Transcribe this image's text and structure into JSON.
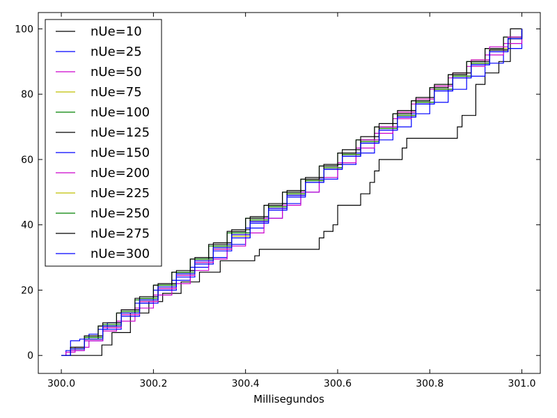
{
  "chart_data": {
    "type": "line",
    "title": "",
    "xlabel": "Millisegundos",
    "ylabel": "",
    "xlim": [
      299.95,
      301.04
    ],
    "ylim": [
      -5.5,
      105
    ],
    "x_ticks": [
      300.0,
      300.2,
      300.4,
      300.6,
      300.8,
      301.0
    ],
    "x_tick_labels": [
      "300.0",
      "300.2",
      "300.4",
      "300.6",
      "300.8",
      "301.0"
    ],
    "y_ticks": [
      0,
      20,
      40,
      60,
      80,
      100
    ],
    "y_tick_labels": [
      "0",
      "20",
      "40",
      "60",
      "80",
      "100"
    ],
    "grid": false,
    "legend_position": "top-left",
    "step": true,
    "series": [
      {
        "name": "nUe=10",
        "color": "#000000",
        "x": [
          300.0,
          300.085,
          300.088,
          300.11,
          300.15,
          300.19,
          300.22,
          300.26,
          300.3,
          300.345,
          300.42,
          300.43,
          300.56,
          300.57,
          300.59,
          300.6,
          300.62,
          300.65,
          300.67,
          300.68,
          300.69,
          300.71,
          300.74,
          300.75,
          300.83,
          300.86,
          300.87,
          300.9,
          300.92,
          300.95,
          300.975,
          301.0
        ],
        "y": [
          0.0,
          0.0,
          3.2,
          7.0,
          13.0,
          16.5,
          19.0,
          22.5,
          25.5,
          29.0,
          30.5,
          32.5,
          36.0,
          38.0,
          40.0,
          46.0,
          46.0,
          49.5,
          53.0,
          56.5,
          60.0,
          60.0,
          63.5,
          66.5,
          66.5,
          70.0,
          73.5,
          83.0,
          86.5,
          90.0,
          100.0,
          100.0
        ]
      },
      {
        "name": "nUe=25",
        "color": "#0000ff",
        "x": [
          300.0,
          300.01,
          300.02,
          300.04,
          300.06,
          300.08,
          300.1,
          300.13,
          300.16,
          300.2,
          300.24,
          300.28,
          300.32,
          300.36,
          300.4,
          300.44,
          300.48,
          300.52,
          300.56,
          300.6,
          300.64,
          300.68,
          300.72,
          300.76,
          300.8,
          300.84,
          300.88,
          300.92,
          300.96,
          301.0
        ],
        "y": [
          0.0,
          1.5,
          4.5,
          5.0,
          6.5,
          8.0,
          10.0,
          13.0,
          16.0,
          20.0,
          23.0,
          27.0,
          30.0,
          34.0,
          39.0,
          42.0,
          46.5,
          50.0,
          54.0,
          58.5,
          62.0,
          66.0,
          70.0,
          74.0,
          77.5,
          81.5,
          85.5,
          89.5,
          94.0,
          100.0
        ]
      },
      {
        "name": "nUe=50",
        "color": "#cc00cc",
        "x": [
          300.0,
          300.01,
          300.03,
          300.06,
          300.09,
          300.12,
          300.16,
          300.2,
          300.24,
          300.28,
          300.32,
          300.36,
          300.4,
          300.44,
          300.48,
          300.52,
          300.56,
          300.6,
          300.64,
          300.68,
          300.72,
          300.76,
          300.8,
          300.84,
          300.88,
          300.92,
          300.96,
          301.0
        ],
        "y": [
          0.0,
          1.0,
          2.5,
          4.5,
          7.5,
          10.5,
          14.5,
          18.5,
          22.0,
          26.0,
          29.5,
          33.5,
          37.5,
          42.0,
          46.0,
          50.0,
          54.5,
          59.0,
          63.5,
          68.0,
          72.5,
          77.0,
          81.5,
          85.0,
          88.5,
          92.0,
          95.5,
          100.0
        ]
      },
      {
        "name": "nUe=75",
        "color": "#bfbf00",
        "x": [
          300.0,
          300.02,
          300.05,
          300.09,
          300.13,
          300.17,
          300.21,
          300.25,
          300.29,
          300.33,
          300.37,
          300.41,
          300.45,
          300.49,
          300.53,
          300.57,
          300.61,
          300.65,
          300.69,
          300.73,
          300.77,
          300.81,
          300.85,
          300.89,
          300.93,
          300.97,
          301.0
        ],
        "y": [
          0.0,
          2.0,
          5.0,
          8.5,
          12.5,
          16.5,
          20.5,
          24.5,
          28.5,
          32.5,
          36.5,
          41.0,
          45.0,
          49.5,
          53.5,
          57.5,
          61.5,
          66.0,
          70.0,
          74.5,
          78.5,
          82.5,
          86.5,
          90.5,
          94.0,
          97.5,
          100.0
        ]
      },
      {
        "name": "nUe=100",
        "color": "#008000",
        "x": [
          300.0,
          300.02,
          300.05,
          300.08,
          300.12,
          300.16,
          300.2,
          300.24,
          300.28,
          300.32,
          300.36,
          300.4,
          300.44,
          300.48,
          300.52,
          300.56,
          300.6,
          300.64,
          300.68,
          300.72,
          300.76,
          300.8,
          300.84,
          300.88,
          300.92,
          300.96,
          301.0
        ],
        "y": [
          0.0,
          2.5,
          5.5,
          9.0,
          13.0,
          17.0,
          21.5,
          25.5,
          29.5,
          33.5,
          37.5,
          42.0,
          46.0,
          50.0,
          54.0,
          58.0,
          62.0,
          66.0,
          70.0,
          74.0,
          78.0,
          82.0,
          86.0,
          90.0,
          94.0,
          97.5,
          100.0
        ]
      },
      {
        "name": "nUe=125",
        "color": "#000000",
        "x": [
          300.0,
          300.02,
          300.05,
          300.08,
          300.12,
          300.16,
          300.2,
          300.24,
          300.28,
          300.32,
          300.36,
          300.4,
          300.44,
          300.48,
          300.52,
          300.56,
          300.6,
          300.64,
          300.68,
          300.72,
          300.76,
          300.8,
          300.84,
          300.88,
          300.92,
          300.96,
          301.0
        ],
        "y": [
          0.0,
          2.0,
          5.0,
          9.0,
          13.0,
          17.5,
          21.5,
          25.5,
          29.5,
          34.0,
          38.0,
          42.0,
          46.0,
          50.0,
          54.0,
          58.0,
          62.0,
          66.0,
          70.0,
          74.0,
          78.0,
          82.0,
          86.0,
          90.0,
          94.0,
          97.5,
          100.0
        ]
      },
      {
        "name": "nUe=150",
        "color": "#0000ff",
        "x": [
          300.0,
          300.02,
          300.05,
          300.09,
          300.13,
          300.17,
          300.21,
          300.25,
          300.29,
          300.33,
          300.37,
          300.41,
          300.45,
          300.49,
          300.53,
          300.57,
          300.61,
          300.65,
          300.69,
          300.73,
          300.77,
          300.81,
          300.85,
          300.89,
          300.93,
          300.97,
          301.0
        ],
        "y": [
          0.0,
          1.5,
          4.5,
          8.0,
          12.0,
          16.0,
          20.0,
          24.0,
          28.0,
          32.0,
          36.0,
          40.5,
          44.5,
          48.5,
          53.0,
          57.0,
          61.0,
          65.0,
          69.0,
          73.0,
          77.0,
          81.0,
          85.0,
          89.0,
          93.0,
          97.0,
          100.0
        ]
      },
      {
        "name": "nUe=200",
        "color": "#cc00cc",
        "x": [
          300.0,
          300.02,
          300.05,
          300.09,
          300.13,
          300.17,
          300.21,
          300.25,
          300.29,
          300.33,
          300.37,
          300.41,
          300.45,
          300.49,
          300.53,
          300.57,
          300.61,
          300.65,
          300.69,
          300.73,
          300.77,
          300.81,
          300.85,
          300.89,
          300.93,
          300.97,
          301.0
        ],
        "y": [
          0.0,
          1.5,
          4.5,
          8.5,
          12.5,
          16.5,
          20.5,
          24.5,
          28.5,
          32.5,
          37.0,
          41.0,
          45.0,
          49.0,
          53.5,
          57.5,
          61.5,
          66.0,
          70.0,
          74.5,
          78.5,
          82.5,
          86.5,
          90.5,
          94.5,
          97.5,
          100.0
        ]
      },
      {
        "name": "nUe=225",
        "color": "#bfbf00",
        "x": [
          300.0,
          300.02,
          300.05,
          300.09,
          300.13,
          300.17,
          300.21,
          300.25,
          300.29,
          300.33,
          300.37,
          300.41,
          300.45,
          300.49,
          300.53,
          300.57,
          300.61,
          300.65,
          300.69,
          300.73,
          300.77,
          300.81,
          300.85,
          300.89,
          300.93,
          300.97,
          301.0
        ],
        "y": [
          0.0,
          2.0,
          5.0,
          9.0,
          13.0,
          17.0,
          21.0,
          25.0,
          29.0,
          33.0,
          37.0,
          41.5,
          45.5,
          49.5,
          53.5,
          57.5,
          61.5,
          65.5,
          69.5,
          73.5,
          77.5,
          81.5,
          85.5,
          89.5,
          93.5,
          97.0,
          100.0
        ]
      },
      {
        "name": "nUe=250",
        "color": "#008000",
        "x": [
          300.0,
          300.02,
          300.05,
          300.09,
          300.13,
          300.17,
          300.21,
          300.25,
          300.29,
          300.33,
          300.37,
          300.41,
          300.45,
          300.49,
          300.53,
          300.57,
          300.61,
          300.65,
          300.69,
          300.73,
          300.77,
          300.81,
          300.85,
          300.89,
          300.93,
          300.97,
          301.0
        ],
        "y": [
          0.0,
          2.0,
          5.5,
          9.5,
          13.5,
          17.5,
          21.5,
          25.5,
          29.5,
          33.5,
          37.5,
          41.5,
          45.5,
          49.5,
          53.5,
          57.5,
          61.5,
          65.5,
          69.5,
          73.5,
          77.5,
          81.5,
          85.5,
          89.5,
          93.5,
          97.0,
          100.0
        ]
      },
      {
        "name": "nUe=275",
        "color": "#000000",
        "x": [
          300.0,
          300.02,
          300.05,
          300.09,
          300.13,
          300.17,
          300.21,
          300.25,
          300.29,
          300.33,
          300.37,
          300.41,
          300.45,
          300.49,
          300.53,
          300.57,
          300.61,
          300.65,
          300.69,
          300.73,
          300.77,
          300.81,
          300.85,
          300.89,
          300.93,
          300.97,
          301.0
        ],
        "y": [
          0.0,
          2.5,
          6.0,
          10.0,
          14.0,
          18.0,
          22.0,
          26.0,
          30.0,
          34.5,
          38.5,
          42.5,
          46.5,
          50.5,
          54.5,
          58.5,
          63.0,
          67.0,
          71.0,
          75.0,
          79.0,
          83.0,
          86.5,
          90.0,
          93.5,
          97.0,
          100.0
        ]
      },
      {
        "name": "nUe=300",
        "color": "#0000ff",
        "x": [
          300.0,
          300.02,
          300.05,
          300.09,
          300.13,
          300.17,
          300.21,
          300.25,
          300.29,
          300.33,
          300.37,
          300.41,
          300.45,
          300.49,
          300.53,
          300.57,
          300.61,
          300.65,
          300.69,
          300.73,
          300.77,
          300.81,
          300.85,
          300.89,
          300.93,
          300.97,
          301.0
        ],
        "y": [
          0.0,
          2.0,
          5.0,
          9.0,
          13.0,
          17.0,
          21.0,
          25.0,
          29.0,
          33.0,
          37.0,
          41.0,
          45.0,
          49.0,
          53.0,
          57.0,
          61.0,
          65.0,
          69.0,
          73.0,
          77.0,
          81.0,
          85.0,
          89.0,
          93.0,
          97.0,
          100.0
        ]
      }
    ]
  }
}
